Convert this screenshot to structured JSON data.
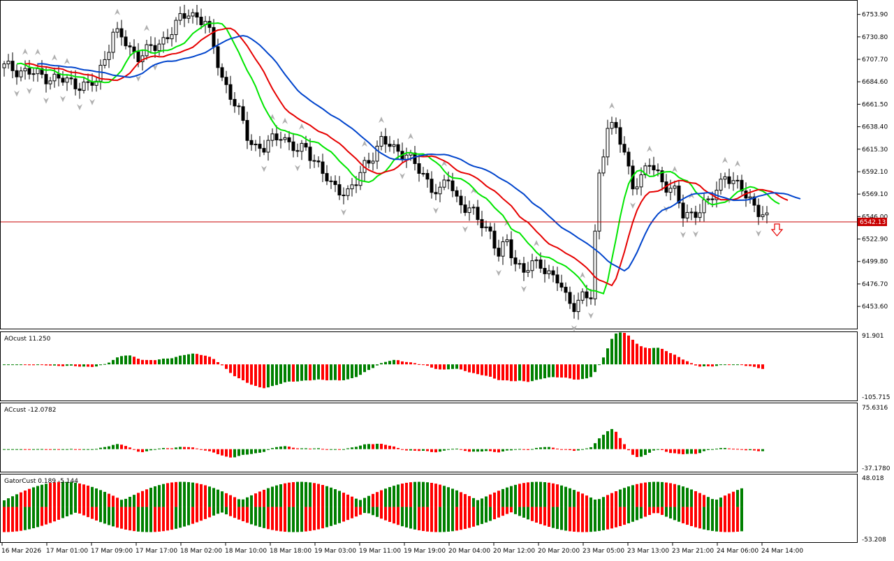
{
  "chart_data": {
    "type": "candlestick",
    "main": {
      "y_ticks": [
        "6753.90",
        "6730.80",
        "6707.70",
        "6684.60",
        "6661.50",
        "6638.40",
        "6615.30",
        "6592.10",
        "6569.10",
        "6546.00",
        "6522.90",
        "6499.80",
        "6476.70",
        "6453.60"
      ],
      "ylim": [
        6430,
        6768
      ],
      "current_price": 6542.13,
      "current_price_label": "6542.13",
      "colors": {
        "alligator_lips": "#00e600",
        "alligator_teeth": "#e60000",
        "alligator_jaw": "#0044cc",
        "price_line": "#c80000"
      }
    },
    "x_ticks": [
      "16 Mar 2026",
      "17 Mar 01:00",
      "17 Mar 09:00",
      "17 Mar 17:00",
      "18 Mar 02:00",
      "18 Mar 10:00",
      "18 Mar 18:00",
      "19 Mar 03:00",
      "19 Mar 11:00",
      "19 Mar 19:00",
      "20 Mar 04:00",
      "20 Mar 12:00",
      "20 Mar 20:00",
      "23 Mar 05:00",
      "23 Mar 13:00",
      "23 Mar 21:00",
      "24 Mar 06:00",
      "24 Mar 14:00"
    ],
    "panels": [
      {
        "name": "AOcust",
        "label": "AOcust 11.250",
        "max_label": "91.901",
        "min_label": "-105.715",
        "ylim": [
          -105.715,
          91.901
        ]
      },
      {
        "name": "ACcust",
        "label": "ACcust -12.0782",
        "max_label": "75.6316",
        "min_label": "-37.1780",
        "ylim": [
          -37.178,
          75.6316
        ]
      },
      {
        "name": "GatorCust",
        "label": "GatorCust 0.189 -5.144",
        "max_label": "48.018",
        "min_label": "-53.208",
        "ylim": [
          -53.208,
          48.018
        ]
      }
    ],
    "osc_colors": {
      "up": "#008000",
      "down": "#ff0000"
    }
  }
}
